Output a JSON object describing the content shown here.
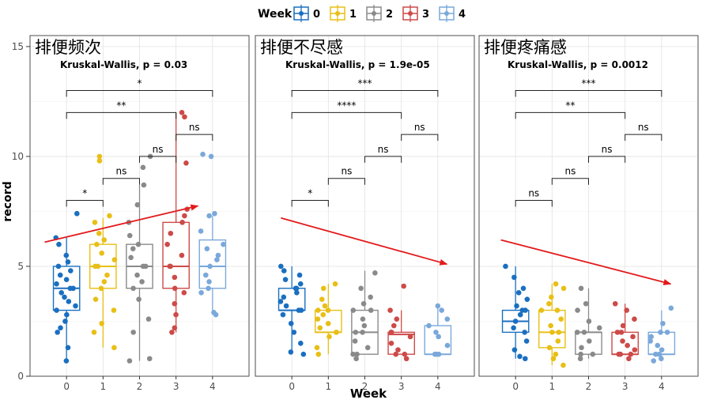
{
  "legend": {
    "title": "Week",
    "items": [
      {
        "label": "0",
        "color": "#1a6fc0"
      },
      {
        "label": "1",
        "color": "#e8bf16"
      },
      {
        "label": "2",
        "color": "#8a8a8a"
      },
      {
        "label": "3",
        "color": "#cd4a48"
      },
      {
        "label": "4",
        "color": "#7aa8da"
      }
    ]
  },
  "axes": {
    "xlabel": "Week",
    "ylabel": "record"
  },
  "chart_data": {
    "type": "boxplot",
    "categories": [
      "0",
      "1",
      "2",
      "3",
      "4"
    ],
    "ylim": [
      0,
      15.5
    ],
    "yticks": [
      0,
      5,
      10,
      15
    ],
    "panels": [
      {
        "title": "排便频次",
        "test_label": "Kruskal-Wallis, p = 0.03",
        "boxes": [
          {
            "week": "0",
            "min": 0.7,
            "q1": 3.0,
            "median": 4.0,
            "q3": 5.0,
            "max": 6.3
          },
          {
            "week": "1",
            "min": 1.3,
            "q1": 4.0,
            "median": 5.0,
            "q3": 6.0,
            "max": 7.2
          },
          {
            "week": "2",
            "min": 0.7,
            "q1": 4.0,
            "median": 5.0,
            "q3": 6.0,
            "max": 8.7
          },
          {
            "week": "3",
            "min": 2.0,
            "q1": 4.0,
            "median": 5.0,
            "q3": 7.0,
            "max": 12.0
          },
          {
            "week": "4",
            "min": 2.8,
            "q1": 4.0,
            "median": 5.0,
            "q3": 6.2,
            "max": 7.3
          }
        ],
        "points": [
          [
            0.7,
            1.3,
            2.0,
            2.2,
            2.5,
            2.8,
            3.0,
            3.2,
            3.4,
            3.6,
            3.8,
            4.0,
            4.0,
            4.2,
            4.4,
            4.6,
            4.8,
            5.0,
            5.2,
            5.5,
            6.0,
            6.3,
            7.4
          ],
          [
            1.3,
            2.0,
            2.4,
            3.0,
            3.5,
            4.0,
            4.3,
            4.6,
            5.0,
            5.0,
            5.3,
            5.6,
            6.0,
            6.2,
            6.5,
            7.0,
            7.3,
            9.8,
            10.0
          ],
          [
            0.7,
            0.8,
            2.0,
            2.6,
            3.5,
            4.0,
            4.3,
            4.6,
            5.0,
            5.0,
            5.4,
            5.8,
            6.0,
            6.4,
            7.0,
            7.8,
            8.7,
            9.5,
            10.0
          ],
          [
            2.0,
            2.2,
            2.8,
            3.3,
            3.8,
            4.0,
            4.5,
            5.0,
            5.0,
            5.5,
            6.0,
            6.5,
            7.0,
            7.3,
            7.6,
            9.7,
            11.8,
            12.0
          ],
          [
            2.8,
            2.9,
            3.8,
            4.0,
            4.3,
            4.6,
            5.0,
            5.3,
            5.5,
            5.8,
            6.0,
            6.6,
            7.3,
            7.4,
            10.0,
            10.1
          ]
        ],
        "brackets": [
          {
            "from": "0",
            "to": "1",
            "y": 8.0,
            "label": "*"
          },
          {
            "from": "1",
            "to": "2",
            "y": 9.0,
            "label": "ns"
          },
          {
            "from": "2",
            "to": "3",
            "y": 10.0,
            "label": "ns"
          },
          {
            "from": "3",
            "to": "4",
            "y": 11.0,
            "label": "ns"
          },
          {
            "from": "0",
            "to": "3",
            "y": 12.0,
            "label": "**"
          },
          {
            "from": "0",
            "to": "4",
            "y": 13.0,
            "label": "*"
          }
        ],
        "trend_arrow": {
          "x_start": -0.6,
          "y_start": 6.1,
          "x_end": 3.6,
          "y_end": 7.75,
          "direction": "up"
        }
      },
      {
        "title": "排便不尽感",
        "test_label": "Kruskal-Wallis, p = 1.9e-05",
        "boxes": [
          {
            "week": "0",
            "min": 1.0,
            "q1": 3.0,
            "median": 3.0,
            "q3": 4.0,
            "max": 5.0
          },
          {
            "week": "1",
            "min": 1.0,
            "q1": 2.0,
            "median": 2.0,
            "q3": 3.0,
            "max": 4.2
          },
          {
            "week": "2",
            "min": 1.0,
            "q1": 1.0,
            "median": 2.0,
            "q3": 3.0,
            "max": 4.8
          },
          {
            "week": "3",
            "min": 1.0,
            "q1": 1.0,
            "median": 1.9,
            "q3": 2.0,
            "max": 3.0
          },
          {
            "week": "4",
            "min": 1.0,
            "q1": 1.0,
            "median": 1.0,
            "q3": 2.3,
            "max": 3.2
          }
        ],
        "points": [
          [
            1.0,
            1.1,
            1.5,
            2.0,
            2.4,
            2.8,
            3.0,
            3.0,
            3.2,
            3.4,
            3.6,
            3.8,
            4.0,
            4.0,
            4.2,
            4.4,
            4.6,
            4.8,
            5.0
          ],
          [
            1.0,
            1.3,
            1.8,
            2.0,
            2.0,
            2.2,
            2.4,
            2.6,
            2.8,
            3.0,
            3.0,
            3.2,
            3.5,
            4.0,
            4.2
          ],
          [
            0.8,
            1.0,
            1.0,
            1.3,
            1.6,
            2.0,
            2.0,
            2.3,
            2.6,
            3.0,
            3.0,
            3.3,
            3.6,
            4.0,
            4.7
          ],
          [
            0.8,
            1.0,
            1.0,
            1.2,
            1.5,
            1.8,
            2.0,
            2.0,
            2.3,
            2.6,
            3.0,
            4.1
          ],
          [
            1.0,
            1.0,
            1.0,
            1.4,
            1.8,
            2.0,
            2.3,
            2.6,
            3.0,
            3.2
          ]
        ],
        "brackets": [
          {
            "from": "0",
            "to": "1",
            "y": 8.0,
            "label": "*"
          },
          {
            "from": "1",
            "to": "2",
            "y": 9.0,
            "label": "ns"
          },
          {
            "from": "2",
            "to": "3",
            "y": 10.0,
            "label": "ns"
          },
          {
            "from": "3",
            "to": "4",
            "y": 11.0,
            "label": "ns"
          },
          {
            "from": "0",
            "to": "3",
            "y": 12.0,
            "label": "****"
          },
          {
            "from": "0",
            "to": "4",
            "y": 13.0,
            "label": "***"
          }
        ],
        "trend_arrow": {
          "x_start": -0.3,
          "y_start": 7.2,
          "x_end": 4.25,
          "y_end": 5.1,
          "direction": "down"
        }
      },
      {
        "title": "排便疼痛感",
        "test_label": "Kruskal-Wallis, p = 0.0012",
        "boxes": [
          {
            "week": "0",
            "min": 0.8,
            "q1": 2.0,
            "median": 2.5,
            "q3": 3.0,
            "max": 5.0
          },
          {
            "week": "1",
            "min": 0.5,
            "q1": 1.3,
            "median": 2.0,
            "q3": 3.0,
            "max": 4.2
          },
          {
            "week": "2",
            "min": 0.8,
            "q1": 1.0,
            "median": 2.0,
            "q3": 2.0,
            "max": 4.0
          },
          {
            "week": "3",
            "min": 1.0,
            "q1": 1.0,
            "median": 1.0,
            "q3": 2.0,
            "max": 3.3
          },
          {
            "week": "4",
            "min": 0.7,
            "q1": 1.0,
            "median": 1.0,
            "q3": 2.0,
            "max": 3.0
          }
        ],
        "points": [
          [
            0.8,
            0.9,
            1.2,
            1.6,
            2.0,
            2.2,
            2.5,
            2.8,
            3.0,
            3.0,
            3.2,
            3.5,
            3.8,
            4.0,
            4.5,
            5.0
          ],
          [
            0.5,
            0.8,
            1.0,
            1.3,
            1.6,
            2.0,
            2.0,
            2.3,
            2.6,
            3.0,
            3.0,
            3.3,
            3.6,
            4.0,
            4.2
          ],
          [
            0.8,
            1.0,
            1.0,
            1.3,
            1.6,
            2.0,
            2.0,
            2.2,
            2.5,
            3.0,
            3.3,
            4.0
          ],
          [
            0.8,
            1.0,
            1.0,
            1.0,
            1.2,
            1.4,
            1.6,
            1.8,
            2.0,
            2.0,
            2.3,
            2.6,
            3.0,
            3.3
          ],
          [
            0.7,
            0.8,
            1.0,
            1.0,
            1.2,
            1.4,
            1.6,
            1.8,
            2.0,
            2.0,
            2.4,
            3.1
          ]
        ],
        "brackets": [
          {
            "from": "0",
            "to": "1",
            "y": 8.0,
            "label": "ns"
          },
          {
            "from": "1",
            "to": "2",
            "y": 9.0,
            "label": "ns"
          },
          {
            "from": "2",
            "to": "3",
            "y": 10.0,
            "label": "ns"
          },
          {
            "from": "3",
            "to": "4",
            "y": 11.0,
            "label": "ns"
          },
          {
            "from": "0",
            "to": "3",
            "y": 12.0,
            "label": "**"
          },
          {
            "from": "0",
            "to": "4",
            "y": 13.0,
            "label": "***"
          }
        ],
        "trend_arrow": {
          "x_start": -0.4,
          "y_start": 6.2,
          "x_end": 4.25,
          "y_end": 4.2,
          "direction": "down"
        }
      }
    ]
  }
}
